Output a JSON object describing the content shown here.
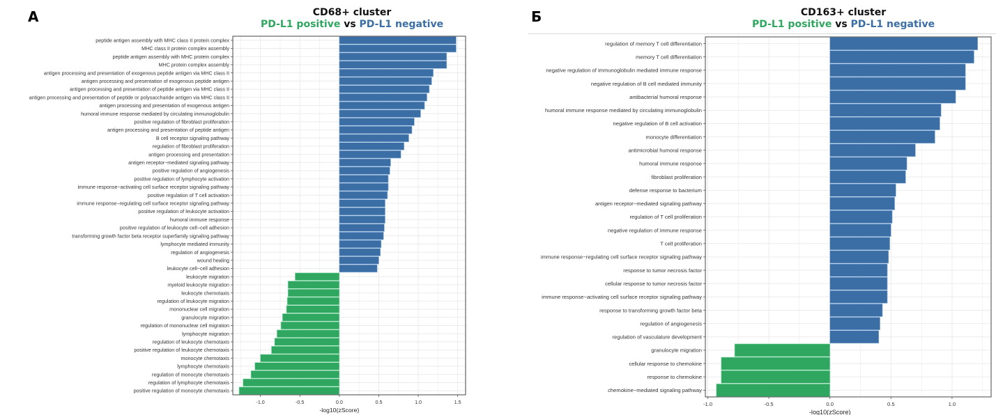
{
  "colors": {
    "positive": "#2fa760",
    "negative": "#3a6ea5",
    "grid": "#ebebeb",
    "axis": "#555555",
    "text": "#333333"
  },
  "panels": [
    {
      "letter": "А",
      "title": "CD68+ cluster",
      "subtitle_pos": "PD-L1 positive",
      "subtitle_vs": "vs",
      "subtitle_neg": "PD-L1 negative"
    },
    {
      "letter": "Б",
      "title": "CD163+ cluster",
      "subtitle_pos": "PD-L1 positive",
      "subtitle_vs": "vs",
      "subtitle_neg": "PD-L1 negative"
    }
  ],
  "chart_data": [
    {
      "type": "bar",
      "orientation": "horizontal",
      "title": "CD68+ cluster — PD-L1 positive vs PD-L1 negative",
      "xlabel": "-log10(zScore)",
      "ylabel": "",
      "xlim": [
        -1.35,
        1.6
      ],
      "xticks": [
        -1.0,
        -0.5,
        0.0,
        0.5,
        1.0,
        1.5
      ],
      "xtick_labels": [
        "-1.0",
        "-0.5",
        "0.0",
        "0.5",
        "1.0",
        "1.5"
      ],
      "grid": true,
      "categories": [
        "peptide antigen assembly with MHC class II protein complex",
        "MHC class II protein complex assembly",
        "peptide antigen assembly with MHC protein complex",
        "MHC protein complex assembly",
        "antigen processing and presentation of exogenous peptide antigen via MHC class II",
        "antigen processing and presentation of exogenous peptide antigen",
        "antigen processing and presentation of peptide antigen via MHC class II",
        "antigen processing and presentation of peptide or polysaccharide antigen via MHC class II",
        "antigen processing and presentation of exogenous antigen",
        "humoral immune response mediated by circulating immunoglobulin",
        "positive regulation of fibroblast proliferation",
        "antigen processing and presentation of peptide antigen",
        "B cell receptor signaling pathway",
        "regulation of fibroblast proliferation",
        "antigen processing and presentation",
        "antigen receptor−mediated signaling pathway",
        "positive regulation of angiogenesis",
        "positive regulation of lymphocyte activation",
        "immune response−activating cell surface receptor signaling pathway",
        "positive regulation of T cell activation",
        "immune response−regulating cell surface receptor signaling pathway",
        "positive regulation of leukocyte activation",
        "humoral immune response",
        "positive regulation of leukocyte cell−cell adhesion",
        "transforming growth factor beta receptor superfamily signaling pathway",
        "lymphocyte mediated immunity",
        "regulation of angiogenesis",
        "wound healing",
        "leukocyte cell−cell adhesion",
        "leukocyte migration",
        "myeloid leukocyte migration",
        "leukocyte chemotaxis",
        "regulation of leukocyte migration",
        "mononuclear cell migration",
        "granulocyte migration",
        "regulation of mononuclear cell migration",
        "lymphocyte migration",
        "regulation of leukocyte chemotaxis",
        "positive regulation of leukocyte chemotaxis",
        "monocyte chemotaxis",
        "lymphocyte chemotaxis",
        "regulation of monocyte chemotaxis",
        "regulation of lymphocyte chemotaxis",
        "positive regulation of monocyte chemotaxis"
      ],
      "values": [
        1.48,
        1.48,
        1.36,
        1.36,
        1.19,
        1.17,
        1.14,
        1.11,
        1.08,
        1.03,
        0.95,
        0.92,
        0.88,
        0.82,
        0.78,
        0.65,
        0.64,
        0.62,
        0.62,
        0.61,
        0.58,
        0.58,
        0.58,
        0.57,
        0.56,
        0.53,
        0.52,
        0.5,
        0.48,
        -0.56,
        -0.65,
        -0.65,
        -0.66,
        -0.67,
        -0.72,
        -0.74,
        -0.79,
        -0.82,
        -0.86,
        -1.0,
        -1.07,
        -1.12,
        -1.22,
        -1.27
      ]
    },
    {
      "type": "bar",
      "orientation": "horizontal",
      "title": "CD163+ cluster — PD-L1 positive vs PD-L1 negative",
      "xlabel": "-log10(zScore)",
      "ylabel": "",
      "xlim": [
        -1.02,
        1.32
      ],
      "xticks": [
        -1.0,
        -0.5,
        0.0,
        0.5,
        1.0
      ],
      "xtick_labels": [
        "-1.0",
        "-0.5",
        "0.0",
        "0.5",
        "1.0"
      ],
      "grid": true,
      "categories": [
        "regulation of memory T cell differentiation",
        "memory T cell differentiation",
        "negative regulation of immunoglobulin mediated immune response",
        "negative regulation of B cell mediated immunity",
        "antibacterial humoral response",
        "humoral immune response mediated by circulating immunoglobulin",
        "negative regulation of B cell activation",
        "monocyte differentiation",
        "antimicrobial humoral response",
        "humoral immune response",
        "fibroblast proliferation",
        "defense response to bacterium",
        "antigen receptor−mediated signaling pathway",
        "regulation of T cell proliferation",
        "negative regulation of immune response",
        "T cell proliferation",
        "immune response−regulating cell surface receptor signaling pathway",
        "response to tumor necrosis factor",
        "cellular response to tumor necrosis factor",
        "immune response−activating cell surface receptor signaling pathway",
        "response to transforming growth factor beta",
        "regulation of angiogenesis",
        "regulation of vasculature development",
        "granulocyte migration",
        "cellular response to chemokine",
        "response to chemokine",
        "chemokine−mediated signaling pathway"
      ],
      "values": [
        1.21,
        1.18,
        1.11,
        1.11,
        1.03,
        0.91,
        0.9,
        0.86,
        0.7,
        0.63,
        0.62,
        0.54,
        0.53,
        0.51,
        0.5,
        0.49,
        0.48,
        0.47,
        0.47,
        0.47,
        0.43,
        0.41,
        0.4,
        -0.78,
        -0.89,
        -0.89,
        -0.93
      ]
    }
  ]
}
